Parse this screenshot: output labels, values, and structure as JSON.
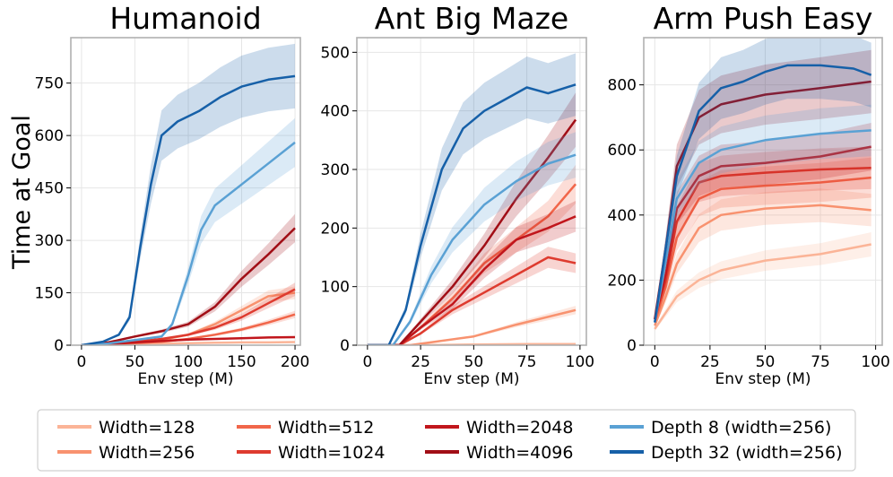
{
  "figure": {
    "ylabel": "Time at Goal",
    "legend": [
      {
        "name": "Width=128",
        "color": "#fbb497"
      },
      {
        "name": "Width=256",
        "color": "#f8926f"
      },
      {
        "name": "Width=512",
        "color": "#f1664a"
      },
      {
        "name": "Width=1024",
        "color": "#de3b2f"
      },
      {
        "name": "Width=2048",
        "color": "#c1161c"
      },
      {
        "name": "Width=4096",
        "color": "#a10e16"
      },
      {
        "name": "Depth 8 (width=256)",
        "color": "#5aa1d4"
      },
      {
        "name": "Depth 32 (width=256)",
        "color": "#1660a8"
      }
    ]
  },
  "chart_data": [
    {
      "type": "line",
      "title": "Humanoid",
      "xlabel": "Env step (M)",
      "ylabel": "Time at Goal",
      "xlim": [
        -10,
        205
      ],
      "ylim": [
        0,
        880
      ],
      "xticks": [
        0,
        50,
        100,
        150,
        200
      ],
      "yticks": [
        0,
        150,
        300,
        450,
        600,
        750
      ],
      "grid": true,
      "series": [
        {
          "name": "Width=128",
          "x": [
            0,
            25,
            50,
            75,
            100,
            125,
            150,
            175,
            200
          ],
          "y": [
            0,
            2,
            4,
            5,
            6,
            7,
            8,
            8,
            9
          ]
        },
        {
          "name": "Width=256",
          "x": [
            0,
            25,
            50,
            75,
            100,
            125,
            150,
            175,
            200
          ],
          "y": [
            0,
            3,
            8,
            15,
            30,
            60,
            100,
            140,
            150
          ]
        },
        {
          "name": "Width=512",
          "x": [
            0,
            25,
            50,
            75,
            100,
            125,
            150,
            175,
            200
          ],
          "y": [
            0,
            3,
            6,
            10,
            18,
            30,
            45,
            65,
            88
          ]
        },
        {
          "name": "Width=1024",
          "x": [
            0,
            25,
            50,
            75,
            100,
            125,
            150,
            175,
            200
          ],
          "y": [
            0,
            4,
            10,
            18,
            30,
            50,
            80,
            120,
            160
          ]
        },
        {
          "name": "Width=2048",
          "x": [
            0,
            25,
            50,
            75,
            100,
            125,
            150,
            175,
            200
          ],
          "y": [
            0,
            3,
            8,
            12,
            16,
            18,
            20,
            22,
            23
          ]
        },
        {
          "name": "Width=4096",
          "x": [
            0,
            25,
            50,
            75,
            100,
            125,
            150,
            175,
            200
          ],
          "y": [
            0,
            8,
            25,
            40,
            60,
            110,
            190,
            260,
            335
          ]
        },
        {
          "name": "Depth 8 (width=256)",
          "x": [
            0,
            25,
            50,
            75,
            85,
            100,
            112,
            125,
            150,
            175,
            200
          ],
          "y": [
            0,
            5,
            15,
            25,
            60,
            200,
            330,
            400,
            460,
            520,
            580
          ]
        },
        {
          "name": "Depth 32 (width=256)",
          "x": [
            0,
            20,
            35,
            45,
            55,
            65,
            75,
            90,
            110,
            130,
            150,
            175,
            200
          ],
          "y": [
            0,
            10,
            30,
            80,
            280,
            460,
            600,
            640,
            670,
            710,
            740,
            760,
            770
          ]
        }
      ]
    },
    {
      "type": "line",
      "title": "Ant Big Maze",
      "xlabel": "Env step (M)",
      "ylabel": "",
      "xlim": [
        -5,
        103
      ],
      "ylim": [
        0,
        525
      ],
      "xticks": [
        0,
        25,
        50,
        75,
        100
      ],
      "yticks": [
        0,
        100,
        200,
        300,
        400,
        500
      ],
      "grid": true,
      "series": [
        {
          "name": "Width=128",
          "x": [
            0,
            25,
            50,
            75,
            98
          ],
          "y": [
            0,
            0,
            1,
            2,
            2
          ]
        },
        {
          "name": "Width=256",
          "x": [
            0,
            20,
            30,
            50,
            70,
            98
          ],
          "y": [
            0,
            0,
            5,
            15,
            35,
            60
          ]
        },
        {
          "name": "Width=512",
          "x": [
            0,
            15,
            25,
            40,
            55,
            70,
            85,
            98
          ],
          "y": [
            0,
            0,
            30,
            80,
            140,
            180,
            220,
            275
          ]
        },
        {
          "name": "Width=1024",
          "x": [
            0,
            15,
            25,
            40,
            55,
            70,
            85,
            98
          ],
          "y": [
            0,
            0,
            20,
            60,
            90,
            120,
            150,
            140
          ]
        },
        {
          "name": "Width=2048",
          "x": [
            0,
            15,
            25,
            40,
            55,
            70,
            85,
            98
          ],
          "y": [
            0,
            0,
            30,
            70,
            130,
            180,
            200,
            220
          ]
        },
        {
          "name": "Width=4096",
          "x": [
            0,
            15,
            25,
            40,
            55,
            70,
            85,
            98
          ],
          "y": [
            0,
            0,
            40,
            100,
            170,
            250,
            320,
            385
          ]
        },
        {
          "name": "Depth 8 (width=256)",
          "x": [
            0,
            12,
            20,
            30,
            40,
            55,
            70,
            85,
            98
          ],
          "y": [
            0,
            0,
            40,
            120,
            180,
            240,
            280,
            310,
            325
          ]
        },
        {
          "name": "Depth 32 (width=256)",
          "x": [
            0,
            10,
            18,
            25,
            35,
            45,
            55,
            65,
            75,
            85,
            98
          ],
          "y": [
            0,
            0,
            60,
            170,
            300,
            370,
            400,
            420,
            440,
            430,
            445
          ]
        }
      ]
    },
    {
      "type": "line",
      "title": "Arm Push Easy",
      "xlabel": "Env step (M)",
      "ylabel": "",
      "xlim": [
        -5,
        103
      ],
      "ylim": [
        0,
        945
      ],
      "xticks": [
        0,
        25,
        50,
        75,
        100
      ],
      "yticks": [
        0,
        200,
        400,
        600,
        800
      ],
      "grid": true,
      "series": [
        {
          "name": "Width=128",
          "x": [
            0,
            5,
            10,
            20,
            30,
            50,
            75,
            98
          ],
          "y": [
            50,
            100,
            150,
            200,
            230,
            260,
            280,
            310
          ]
        },
        {
          "name": "Width=256",
          "x": [
            0,
            5,
            10,
            20,
            30,
            50,
            75,
            98
          ],
          "y": [
            60,
            150,
            250,
            360,
            400,
            420,
            430,
            415
          ]
        },
        {
          "name": "Width=512",
          "x": [
            0,
            5,
            10,
            20,
            30,
            50,
            75,
            98
          ],
          "y": [
            70,
            180,
            330,
            450,
            480,
            490,
            500,
            515
          ]
        },
        {
          "name": "Width=1024",
          "x": [
            0,
            5,
            10,
            20,
            30,
            50,
            75,
            98
          ],
          "y": [
            80,
            200,
            380,
            500,
            520,
            530,
            540,
            545
          ]
        },
        {
          "name": "Width=2048",
          "x": [
            0,
            5,
            10,
            20,
            30,
            50,
            75,
            98
          ],
          "y": [
            80,
            220,
            420,
            520,
            550,
            560,
            580,
            610
          ]
        },
        {
          "name": "Width=4096",
          "x": [
            0,
            5,
            10,
            20,
            30,
            50,
            75,
            98
          ],
          "y": [
            80,
            300,
            550,
            700,
            740,
            770,
            790,
            810
          ]
        },
        {
          "name": "Depth 8 (width=256)",
          "x": [
            0,
            5,
            10,
            20,
            30,
            50,
            75,
            98
          ],
          "y": [
            70,
            260,
            450,
            560,
            600,
            630,
            650,
            660
          ]
        },
        {
          "name": "Depth 32 (width=256)",
          "x": [
            0,
            5,
            10,
            20,
            30,
            40,
            50,
            60,
            75,
            90,
            98
          ],
          "y": [
            70,
            300,
            520,
            720,
            790,
            810,
            840,
            860,
            860,
            850,
            830
          ]
        }
      ]
    }
  ]
}
